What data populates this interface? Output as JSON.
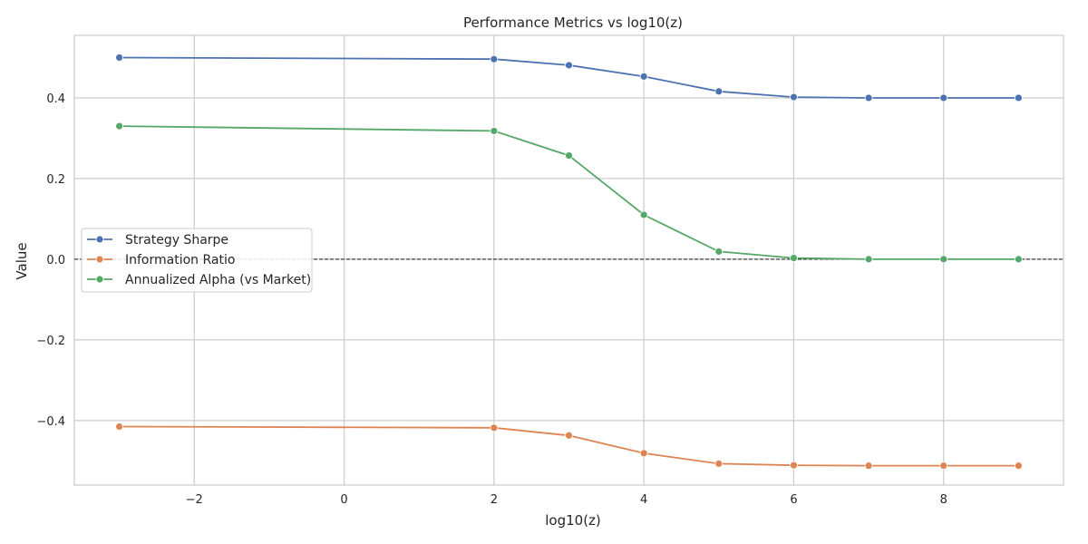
{
  "chart_data": {
    "type": "line",
    "title": "Performance Metrics vs log10(z)",
    "xlabel": "log10(z)",
    "ylabel": "Value",
    "x": [
      -3,
      2,
      3,
      4,
      5,
      6,
      7,
      8,
      9
    ],
    "xlim": [
      -3.6,
      9.6
    ],
    "ylim": [
      -0.56,
      0.555
    ],
    "xticks": [
      -2,
      0,
      2,
      4,
      6,
      8
    ],
    "xtick_labels": [
      "−2",
      "0",
      "2",
      "4",
      "6",
      "8"
    ],
    "yticks": [
      -0.4,
      -0.2,
      0.0,
      0.2,
      0.4
    ],
    "ytick_labels": [
      "−0.4",
      "−0.2",
      "0.0",
      "0.2",
      "0.4"
    ],
    "grid": true,
    "legend_position": "center-left",
    "reference_line": {
      "y": 0.0,
      "style": "dashed",
      "color": "#000000"
    },
    "series": [
      {
        "name": "Strategy Sharpe",
        "color": "#4c72b0",
        "values": [
          0.5,
          0.496,
          0.481,
          0.453,
          0.416,
          0.402,
          0.4,
          0.4,
          0.4
        ]
      },
      {
        "name": "Information Ratio",
        "color": "#dd8452",
        "values": [
          -0.415,
          -0.418,
          -0.437,
          -0.481,
          -0.507,
          -0.511,
          -0.512,
          -0.512,
          -0.512
        ]
      },
      {
        "name": "Annualized Alpha (vs Market)",
        "color": "#55a868",
        "values": [
          0.33,
          0.318,
          0.257,
          0.11,
          0.019,
          0.003,
          0.0,
          0.0,
          0.0
        ]
      }
    ]
  }
}
